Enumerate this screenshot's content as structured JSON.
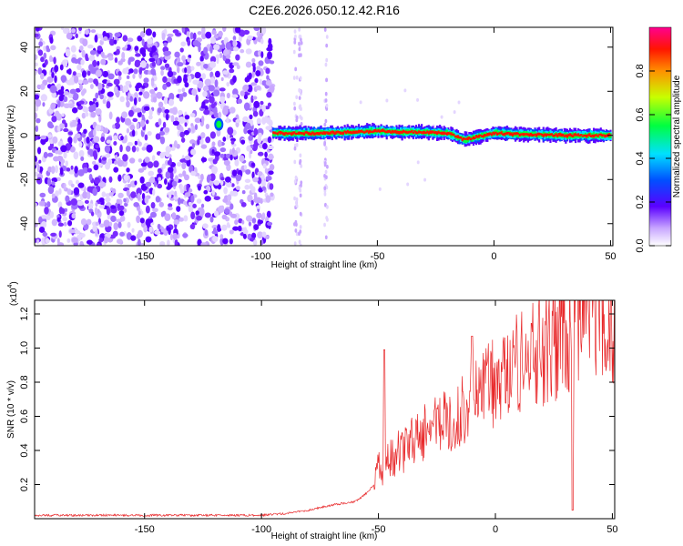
{
  "figure": {
    "title": "C2E6.2026.050.12.42.R16"
  },
  "chart_data": [
    {
      "type": "heatmap",
      "xlabel": "Height of straight line (km)",
      "ylabel": "Frequency (Hz)",
      "xlim": [
        -197,
        51
      ],
      "ylim": [
        -50,
        49
      ],
      "xticks": [
        -150,
        -100,
        -50,
        0,
        50
      ],
      "yticks": [
        -40,
        -20,
        0,
        20,
        40
      ],
      "colorbar": {
        "label": "Normalized spectral amplitude",
        "ticks": [
          "0.0",
          "0.2",
          "0.4",
          "0.6",
          "0.8"
        ],
        "range": [
          0,
          1
        ]
      },
      "description_series": {
        "noise_region_x": [
          -197,
          -95
        ],
        "sparse_columns_x": [
          -85,
          -83,
          -72
        ],
        "signal_band": {
          "x": [
            -95,
            -80,
            -60,
            -50,
            -40,
            -30,
            -20,
            -13,
            -5,
            0,
            10,
            30,
            50
          ],
          "y": [
            1,
            1,
            1.5,
            2,
            1.5,
            1.5,
            1,
            -2,
            0,
            1,
            0.5,
            0,
            0
          ]
        },
        "isolated_blob": {
          "x": -118,
          "y": 5
        }
      }
    },
    {
      "type": "line",
      "xlabel": "Height of straight line (km)",
      "ylabel": "SNR (10 * v/v)",
      "y_multiplier": "(x10",
      "y_multiplier_exp": "4",
      "y_multiplier_close": ")",
      "xlim": [
        -197,
        51
      ],
      "ylim": [
        0,
        1.28
      ],
      "xticks": [
        -150,
        -100,
        -50,
        0,
        50
      ],
      "yticks": [
        "0.2",
        "0.4",
        "0.6",
        "0.8",
        "1.0",
        "1.2"
      ],
      "color": "#e8282a",
      "series": [
        {
          "envelope_x": [
            -197,
            -150,
            -120,
            -100,
            -90,
            -80,
            -70,
            -60,
            -55,
            -52,
            -50,
            -48,
            -45,
            -40,
            -35,
            -30,
            -25,
            -20,
            -15,
            -10,
            -5,
            0,
            5,
            10,
            15,
            20,
            25,
            30,
            35,
            40,
            45,
            50
          ],
          "envelope_y": [
            0.02,
            0.02,
            0.02,
            0.02,
            0.03,
            0.05,
            0.08,
            0.1,
            0.15,
            0.2,
            0.3,
            0.3,
            0.35,
            0.4,
            0.45,
            0.5,
            0.55,
            0.6,
            0.62,
            0.7,
            0.75,
            0.8,
            0.85,
            0.9,
            0.95,
            1.0,
            1.05,
            1.1,
            1.15,
            1.18,
            1.2,
            1.2
          ],
          "spikes": [
            {
              "x": -47.5,
              "y": 0.99
            },
            {
              "x": -10,
              "y": 1.07
            },
            {
              "x": 33,
              "y": 0.05
            },
            {
              "x": 35,
              "y": 1.28
            }
          ]
        }
      ]
    }
  ]
}
